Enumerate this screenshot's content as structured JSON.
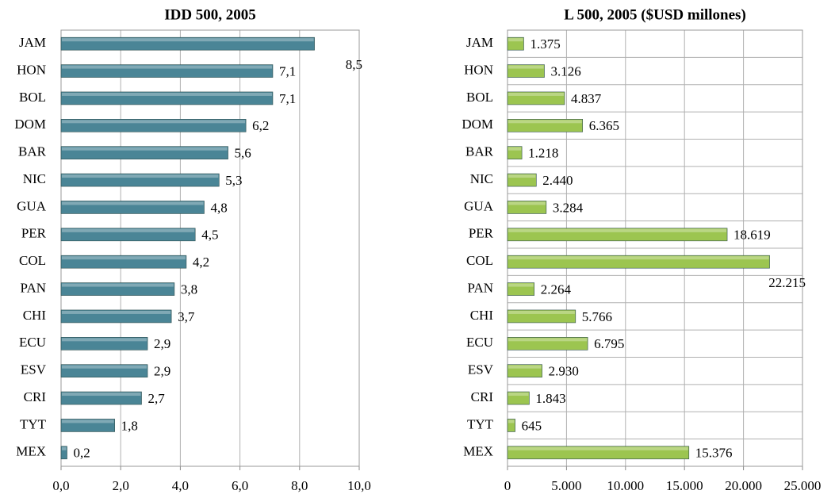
{
  "chart_data": [
    {
      "type": "bar",
      "orientation": "horizontal",
      "title": "IDD 500, 2005",
      "categories": [
        "JAM",
        "HON",
        "BOL",
        "DOM",
        "BAR",
        "NIC",
        "GUA",
        "PER",
        "COL",
        "PAN",
        "CHI",
        "ECU",
        "ESV",
        "CRI",
        "TYT",
        "MEX"
      ],
      "values": [
        8.5,
        7.1,
        7.1,
        6.2,
        5.6,
        5.3,
        4.8,
        4.5,
        4.2,
        3.8,
        3.7,
        2.9,
        2.9,
        2.7,
        1.8,
        0.2
      ],
      "value_labels": [
        "8,5",
        "7,1",
        "7,1",
        "6,2",
        "5,6",
        "5,3",
        "4,8",
        "4,5",
        "4,2",
        "3,8",
        "3,7",
        "2,9",
        "2,9",
        "2,7",
        "1,8",
        "0,2"
      ],
      "color": "#4a8596",
      "xlim": [
        0,
        10
      ],
      "xticks": [
        {
          "value": 0,
          "label": "0,0"
        },
        {
          "value": 2,
          "label": "2,0"
        },
        {
          "value": 4,
          "label": "4,0"
        },
        {
          "value": 6,
          "label": "6,0"
        },
        {
          "value": 8,
          "label": "8,0"
        },
        {
          "value": 10,
          "label": "10,0"
        }
      ],
      "grid": "x"
    },
    {
      "type": "bar",
      "orientation": "horizontal",
      "title": "L 500, 2005 ($USD millones)",
      "categories": [
        "JAM",
        "HON",
        "BOL",
        "DOM",
        "BAR",
        "NIC",
        "GUA",
        "PER",
        "COL",
        "PAN",
        "CHI",
        "ECU",
        "ESV",
        "CRI",
        "TYT",
        "MEX"
      ],
      "values": [
        1375,
        3126,
        4837,
        6365,
        1218,
        2440,
        3284,
        18619,
        22215,
        2264,
        5766,
        6795,
        2930,
        1843,
        645,
        15376
      ],
      "value_labels": [
        "1.375",
        "3.126",
        "4.837",
        "6.365",
        "1.218",
        "2.440",
        "3.284",
        "18.619",
        "22.215",
        "2.264",
        "5.766",
        "6.795",
        "2.930",
        "1.843",
        "645",
        "15.376"
      ],
      "color": "#9cc550",
      "xlim": [
        0,
        25000
      ],
      "xticks": [
        0,
        {
          "value": 5000,
          "label": "5.000"
        },
        {
          "value": 10000,
          "label": "10.000"
        },
        {
          "value": 15000,
          "label": "15.000"
        },
        {
          "value": 20000,
          "label": "20.000"
        },
        {
          "value": 25000,
          "label": "25.000"
        }
      ],
      "grid": "both"
    }
  ]
}
